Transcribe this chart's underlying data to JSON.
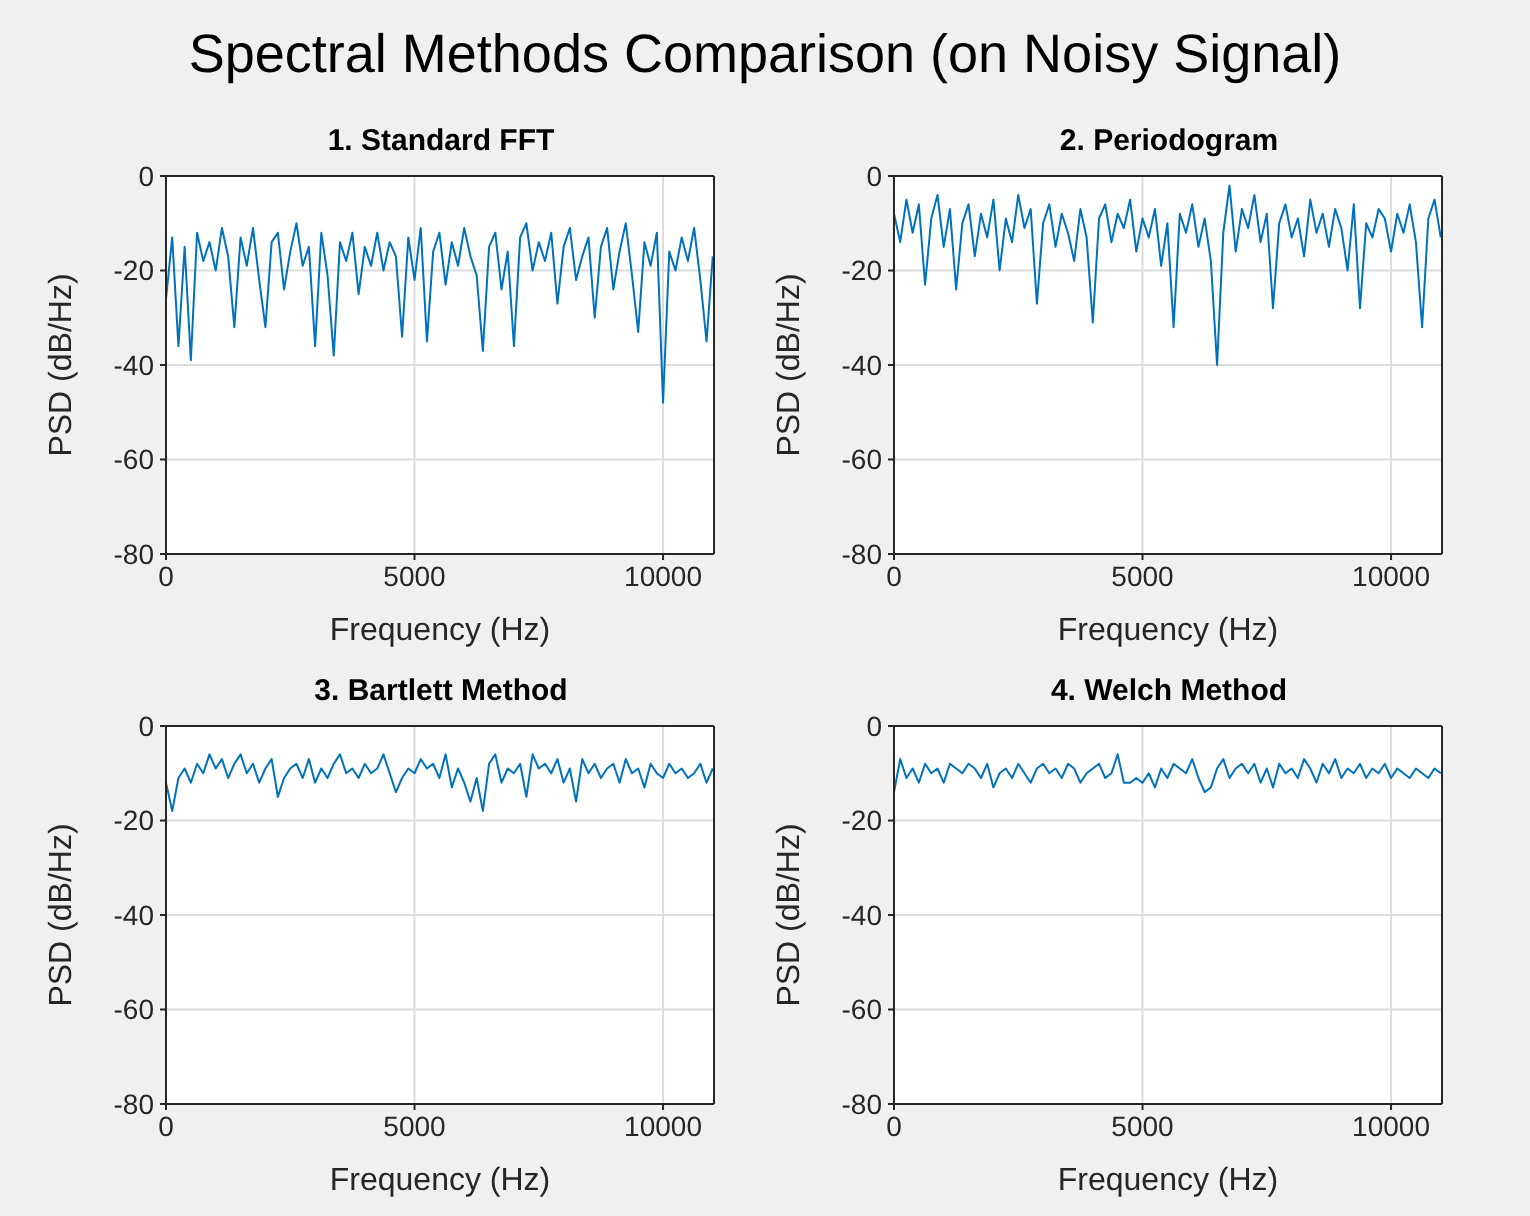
{
  "chart_data": [
    {
      "type": "line",
      "title": "1. Standard FFT",
      "annotations": [
        "Spectral Methods Comparison (on Noisy Signal)"
      ],
      "xlabel": "Frequency (Hz)",
      "ylabel": "PSD (dB/Hz)",
      "xlim": [
        0,
        11025
      ],
      "ylim": [
        -80,
        0
      ],
      "xticks": [
        0,
        5000,
        10000
      ],
      "yticks": [
        -80,
        -60,
        -40,
        -20,
        0
      ],
      "grid": true,
      "x": [
        0,
        125,
        250,
        375,
        500,
        625,
        750,
        875,
        1000,
        1125,
        1250,
        1375,
        1500,
        1625,
        1750,
        1875,
        2000,
        2125,
        2250,
        2375,
        2500,
        2625,
        2750,
        2875,
        3000,
        3125,
        3250,
        3375,
        3500,
        3625,
        3750,
        3875,
        4000,
        4125,
        4250,
        4375,
        4500,
        4625,
        4750,
        4875,
        5000,
        5125,
        5250,
        5375,
        5500,
        5625,
        5750,
        5875,
        6000,
        6125,
        6250,
        6375,
        6500,
        6625,
        6750,
        6875,
        7000,
        7125,
        7250,
        7375,
        7500,
        7625,
        7750,
        7875,
        8000,
        8125,
        8250,
        8375,
        8500,
        8625,
        8750,
        8875,
        9000,
        9125,
        9250,
        9375,
        9500,
        9625,
        9750,
        9875,
        10000,
        10125,
        10250,
        10375,
        10500,
        10625,
        10750,
        10875,
        11000
      ],
      "series": [
        {
          "color": "#0072bd",
          "values": [
            -26,
            -13,
            -36,
            -15,
            -39,
            -12,
            -18,
            -14,
            -20,
            -11,
            -17,
            -32,
            -13,
            -19,
            -11,
            -22,
            -32,
            -14,
            -12,
            -24,
            -16,
            -10,
            -19,
            -15,
            -36,
            -12,
            -21,
            -38,
            -14,
            -18,
            -12,
            -25,
            -15,
            -19,
            -12,
            -20,
            -14,
            -17,
            -34,
            -13,
            -22,
            -11,
            -35,
            -16,
            -12,
            -23,
            -14,
            -19,
            -11,
            -17,
            -21,
            -37,
            -15,
            -12,
            -24,
            -16,
            -36,
            -13,
            -10,
            -20,
            -14,
            -18,
            -12,
            -27,
            -15,
            -11,
            -22,
            -17,
            -13,
            -30,
            -15,
            -11,
            -24,
            -16,
            -10,
            -21,
            -33,
            -14,
            -19,
            -12,
            -48,
            -16,
            -20,
            -13,
            -18,
            -11,
            -22,
            -35,
            -17
          ]
        }
      ]
    },
    {
      "type": "line",
      "title": "2. Periodogram",
      "xlabel": "Frequency (Hz)",
      "ylabel": "PSD (dB/Hz)",
      "xlim": [
        0,
        11025
      ],
      "ylim": [
        -80,
        0
      ],
      "xticks": [
        0,
        5000,
        10000
      ],
      "yticks": [
        -80,
        -60,
        -40,
        -20,
        0
      ],
      "grid": true,
      "x": [
        0,
        125,
        250,
        375,
        500,
        625,
        750,
        875,
        1000,
        1125,
        1250,
        1375,
        1500,
        1625,
        1750,
        1875,
        2000,
        2125,
        2250,
        2375,
        2500,
        2625,
        2750,
        2875,
        3000,
        3125,
        3250,
        3375,
        3500,
        3625,
        3750,
        3875,
        4000,
        4125,
        4250,
        4375,
        4500,
        4625,
        4750,
        4875,
        5000,
        5125,
        5250,
        5375,
        5500,
        5625,
        5750,
        5875,
        6000,
        6125,
        6250,
        6375,
        6500,
        6625,
        6750,
        6875,
        7000,
        7125,
        7250,
        7375,
        7500,
        7625,
        7750,
        7875,
        8000,
        8125,
        8250,
        8375,
        8500,
        8625,
        8750,
        8875,
        9000,
        9125,
        9250,
        9375,
        9500,
        9625,
        9750,
        9875,
        10000,
        10125,
        10250,
        10375,
        10500,
        10625,
        10750,
        10875,
        11000
      ],
      "series": [
        {
          "color": "#0072bd",
          "values": [
            -8,
            -14,
            -5,
            -12,
            -6,
            -23,
            -9,
            -4,
            -15,
            -7,
            -24,
            -10,
            -6,
            -17,
            -8,
            -13,
            -5,
            -20,
            -9,
            -14,
            -4,
            -11,
            -7,
            -27,
            -10,
            -6,
            -15,
            -8,
            -12,
            -18,
            -7,
            -13,
            -31,
            -9,
            -6,
            -14,
            -8,
            -11,
            -5,
            -16,
            -9,
            -13,
            -7,
            -19,
            -10,
            -32,
            -8,
            -12,
            -6,
            -15,
            -9,
            -18,
            -40,
            -12,
            -2,
            -16,
            -7,
            -11,
            -4,
            -14,
            -8,
            -28,
            -10,
            -6,
            -13,
            -9,
            -17,
            -5,
            -12,
            -8,
            -15,
            -7,
            -11,
            -20,
            -6,
            -28,
            -10,
            -13,
            -7,
            -9,
            -16,
            -8,
            -12,
            -6,
            -14,
            -32,
            -9,
            -5,
            -13
          ]
        }
      ]
    },
    {
      "type": "line",
      "title": "3. Bartlett Method",
      "xlabel": "Frequency (Hz)",
      "ylabel": "PSD (dB/Hz)",
      "xlim": [
        0,
        11025
      ],
      "ylim": [
        -80,
        0
      ],
      "xticks": [
        0,
        5000,
        10000
      ],
      "yticks": [
        -80,
        -60,
        -40,
        -20,
        0
      ],
      "grid": true,
      "x": [
        0,
        125,
        250,
        375,
        500,
        625,
        750,
        875,
        1000,
        1125,
        1250,
        1375,
        1500,
        1625,
        1750,
        1875,
        2000,
        2125,
        2250,
        2375,
        2500,
        2625,
        2750,
        2875,
        3000,
        3125,
        3250,
        3375,
        3500,
        3625,
        3750,
        3875,
        4000,
        4125,
        4250,
        4375,
        4500,
        4625,
        4750,
        4875,
        5000,
        5125,
        5250,
        5375,
        5500,
        5625,
        5750,
        5875,
        6000,
        6125,
        6250,
        6375,
        6500,
        6625,
        6750,
        6875,
        7000,
        7125,
        7250,
        7375,
        7500,
        7625,
        7750,
        7875,
        8000,
        8125,
        8250,
        8375,
        8500,
        8625,
        8750,
        8875,
        9000,
        9125,
        9250,
        9375,
        9500,
        9625,
        9750,
        9875,
        10000,
        10125,
        10250,
        10375,
        10500,
        10625,
        10750,
        10875,
        11000
      ],
      "series": [
        {
          "color": "#0072bd",
          "values": [
            -12,
            -18,
            -11,
            -9,
            -12,
            -8,
            -10,
            -6,
            -9,
            -7,
            -11,
            -8,
            -6,
            -10,
            -8,
            -12,
            -9,
            -7,
            -15,
            -11,
            -9,
            -8,
            -11,
            -7,
            -12,
            -9,
            -11,
            -8,
            -6,
            -10,
            -9,
            -11,
            -8,
            -10,
            -9,
            -6,
            -10,
            -14,
            -11,
            -9,
            -10,
            -7,
            -9,
            -8,
            -11,
            -6,
            -13,
            -9,
            -12,
            -16,
            -11,
            -18,
            -8,
            -6,
            -12,
            -9,
            -10,
            -8,
            -15,
            -6,
            -9,
            -8,
            -10,
            -7,
            -12,
            -9,
            -16,
            -7,
            -10,
            -8,
            -11,
            -9,
            -8,
            -12,
            -7,
            -10,
            -9,
            -13,
            -8,
            -10,
            -11,
            -8,
            -10,
            -9,
            -11,
            -10,
            -8,
            -12,
            -9
          ]
        }
      ]
    },
    {
      "type": "line",
      "title": "4. Welch Method",
      "xlabel": "Frequency (Hz)",
      "ylabel": "PSD (dB/Hz)",
      "xlim": [
        0,
        11025
      ],
      "ylim": [
        -80,
        0
      ],
      "xticks": [
        0,
        5000,
        10000
      ],
      "yticks": [
        -80,
        -60,
        -40,
        -20,
        0
      ],
      "grid": true,
      "x": [
        0,
        125,
        250,
        375,
        500,
        625,
        750,
        875,
        1000,
        1125,
        1250,
        1375,
        1500,
        1625,
        1750,
        1875,
        2000,
        2125,
        2250,
        2375,
        2500,
        2625,
        2750,
        2875,
        3000,
        3125,
        3250,
        3375,
        3500,
        3625,
        3750,
        3875,
        4000,
        4125,
        4250,
        4375,
        4500,
        4625,
        4750,
        4875,
        5000,
        5125,
        5250,
        5375,
        5500,
        5625,
        5750,
        5875,
        6000,
        6125,
        6250,
        6375,
        6500,
        6625,
        6750,
        6875,
        7000,
        7125,
        7250,
        7375,
        7500,
        7625,
        7750,
        7875,
        8000,
        8125,
        8250,
        8375,
        8500,
        8625,
        8750,
        8875,
        9000,
        9125,
        9250,
        9375,
        9500,
        9625,
        9750,
        9875,
        10000,
        10125,
        10250,
        10375,
        10500,
        10625,
        10750,
        10875,
        11000
      ],
      "series": [
        {
          "color": "#0072bd",
          "values": [
            -14,
            -7,
            -11,
            -9,
            -12,
            -8,
            -10,
            -9,
            -12,
            -8,
            -9,
            -10,
            -8,
            -9,
            -11,
            -8,
            -13,
            -10,
            -9,
            -11,
            -8,
            -10,
            -12,
            -9,
            -8,
            -10,
            -9,
            -11,
            -8,
            -9,
            -12,
            -10,
            -9,
            -8,
            -11,
            -10,
            -6,
            -12,
            -12,
            -11,
            -12,
            -10,
            -13,
            -9,
            -11,
            -8,
            -9,
            -10,
            -7,
            -11,
            -14,
            -13,
            -9,
            -7,
            -11,
            -9,
            -8,
            -10,
            -8,
            -12,
            -9,
            -13,
            -8,
            -10,
            -9,
            -11,
            -7,
            -9,
            -12,
            -8,
            -10,
            -7,
            -11,
            -9,
            -10,
            -8,
            -11,
            -9,
            -10,
            -8,
            -11,
            -9,
            -10,
            -11,
            -9,
            -10,
            -11,
            -9,
            -10
          ]
        }
      ]
    }
  ]
}
